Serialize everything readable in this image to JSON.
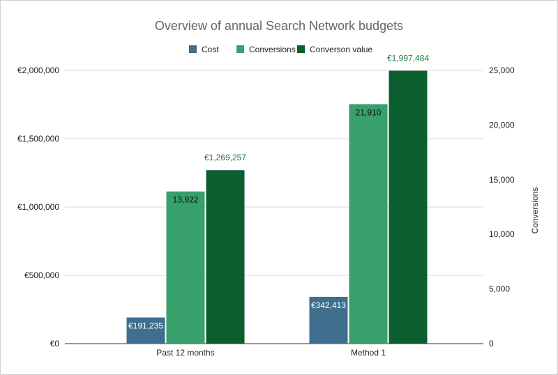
{
  "chart_data": {
    "type": "bar",
    "title": "Overview of annual Search Network budgets",
    "categories": [
      "Past 12 months",
      "Method 1"
    ],
    "series": [
      {
        "name": "Cost",
        "axis": "left",
        "color": "#3f6f8f",
        "values": [
          191235,
          342413
        ],
        "labels": [
          "€191,235",
          "€342,413"
        ],
        "label_position": "inside-top"
      },
      {
        "name": "Conversions",
        "axis": "right",
        "color": "#37a06b",
        "values": [
          13922,
          21910
        ],
        "labels": [
          "13,922",
          "21,910"
        ],
        "label_position": "inside-top"
      },
      {
        "name": "Conversion value",
        "axis": "left",
        "color": "#0b5e2e",
        "values": [
          1269257,
          1997484
        ],
        "labels": [
          "€1,269,257",
          "€1,997,484"
        ],
        "label_position": "above"
      }
    ],
    "legend": {
      "position": "top",
      "entries": [
        "Cost",
        "Conversions",
        "Converson value"
      ]
    },
    "y_left": {
      "ylim": [
        0,
        2000000
      ],
      "ticks": [
        0,
        500000,
        1000000,
        1500000,
        2000000
      ],
      "tick_labels": [
        "€0",
        "€500,000",
        "€1,000,000",
        "€1,500,000",
        "€2,000,000"
      ],
      "label": ""
    },
    "y_right": {
      "ylim": [
        0,
        25000
      ],
      "ticks": [
        0,
        5000,
        10000,
        15000,
        20000,
        25000
      ],
      "tick_labels": [
        "0",
        "5,000",
        "10,000",
        "15,000",
        "20,000",
        "25,000"
      ],
      "label": "Conversions"
    },
    "grid": true
  }
}
